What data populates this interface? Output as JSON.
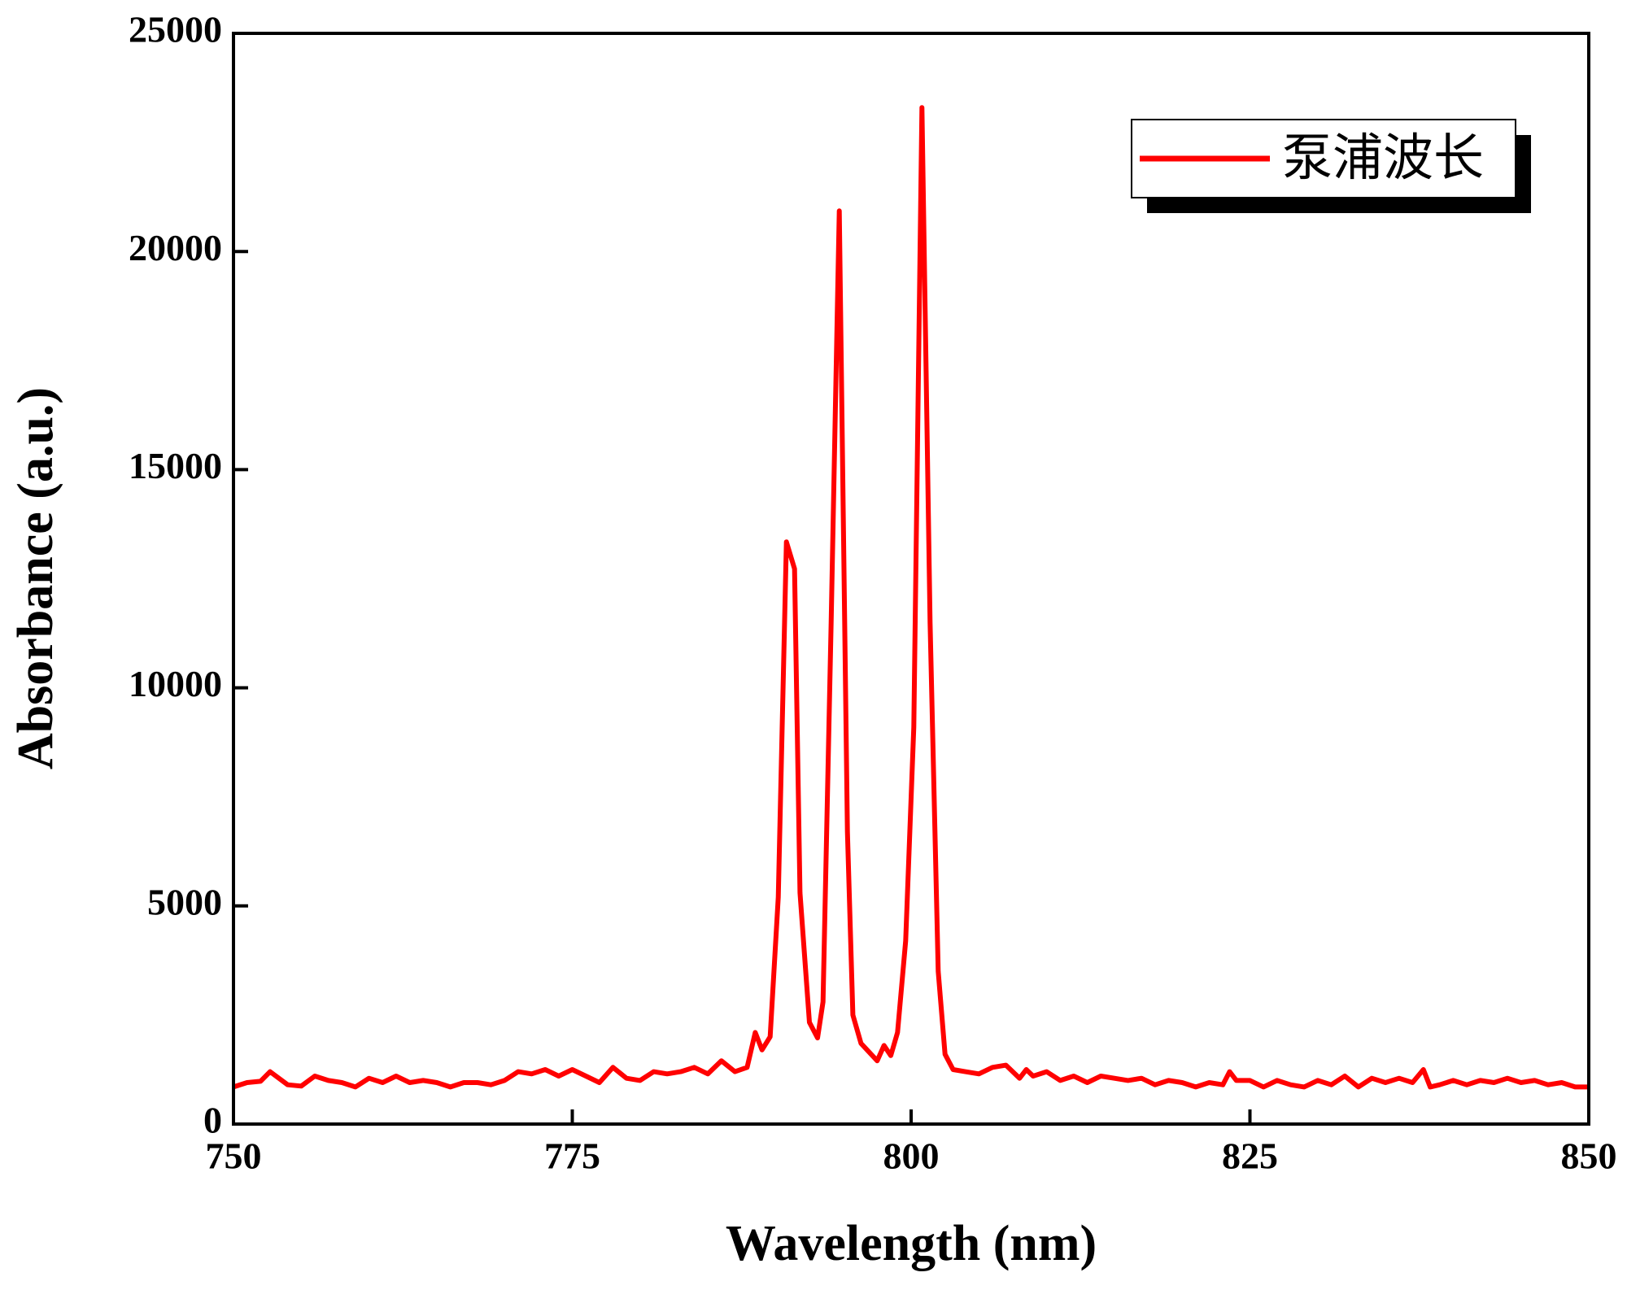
{
  "chart_data": {
    "type": "line",
    "xlabel": "Wavelength (nm)",
    "ylabel": "Absorbance (a.u.)",
    "x": [
      750,
      751,
      752,
      752.7,
      754,
      755,
      756,
      757,
      758,
      759,
      760,
      761,
      762,
      763,
      764,
      765,
      766,
      767,
      768,
      769,
      770,
      771,
      772,
      773,
      774,
      775,
      776,
      777,
      778,
      779,
      780,
      781,
      782,
      783,
      784,
      785,
      786,
      787,
      787.9,
      788.5,
      789,
      789.6,
      790.2,
      790.8,
      791.4,
      791.8,
      792.5,
      793.1,
      793.5,
      794.1,
      794.7,
      795.3,
      795.7,
      796.3,
      797.5,
      798,
      798.5,
      799,
      799.6,
      800.2,
      800.8,
      801.4,
      802,
      802.5,
      803.1,
      804,
      805,
      806,
      807,
      808,
      808.5,
      809,
      810,
      811,
      812,
      813,
      814,
      815,
      816,
      817,
      818,
      819,
      820,
      821,
      822,
      823,
      823.5,
      824,
      825,
      826,
      827,
      828,
      829,
      830,
      831,
      832,
      833,
      834,
      835,
      836,
      837,
      837.8,
      838.3,
      839,
      840,
      841,
      842,
      843,
      844,
      845,
      846,
      847,
      848,
      849,
      850
    ],
    "series": [
      {
        "name": "泵浦波长",
        "color": "#ff0000",
        "values": [
          850,
          950,
          980,
          1200,
          900,
          870,
          1100,
          1000,
          950,
          850,
          1050,
          950,
          1100,
          950,
          1000,
          950,
          850,
          950,
          950,
          900,
          1000,
          1200,
          1150,
          1250,
          1100,
          1250,
          1100,
          950,
          1300,
          1050,
          1000,
          1200,
          1150,
          1200,
          1300,
          1150,
          1450,
          1200,
          1300,
          2100,
          1700,
          2000,
          5200,
          13344,
          12726,
          5300,
          2330,
          1975,
          2800,
          11500,
          20930,
          6700,
          2500,
          1850,
          1450,
          1800,
          1570,
          2100,
          4200,
          9100,
          23300,
          11500,
          3500,
          1600,
          1250,
          1200,
          1150,
          1300,
          1350,
          1050,
          1250,
          1100,
          1200,
          1000,
          1100,
          950,
          1100,
          1050,
          1000,
          1050,
          900,
          1000,
          950,
          850,
          950,
          900,
          1200,
          1000,
          1000,
          850,
          1000,
          900,
          850,
          1000,
          900,
          1100,
          850,
          1050,
          950,
          1050,
          950,
          1250,
          850,
          900,
          1000,
          900,
          1000,
          950,
          1050,
          950,
          1000,
          900,
          950,
          850,
          850
        ]
      }
    ],
    "xlim": [
      750,
      850
    ],
    "xticks": [
      750,
      775,
      800,
      825,
      850
    ],
    "ylim": [
      0,
      25000
    ],
    "yticks": [
      0,
      5000,
      10000,
      15000,
      20000,
      25000
    ],
    "legend": "upper right"
  }
}
